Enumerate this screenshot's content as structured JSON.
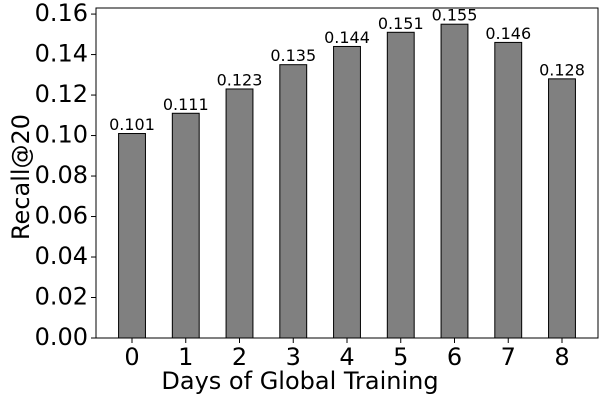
{
  "chart_data": {
    "type": "bar",
    "xlabel": "Days of Global Training",
    "ylabel": "Recall@20",
    "categories": [
      "0",
      "1",
      "2",
      "3",
      "4",
      "5",
      "6",
      "7",
      "8"
    ],
    "values": [
      0.101,
      0.111,
      0.123,
      0.135,
      0.144,
      0.151,
      0.155,
      0.146,
      0.128
    ],
    "color": "#808080",
    "edgecolor": "#000000",
    "ylim": [
      0,
      0.163
    ],
    "yticks": [
      {
        "value": 0,
        "label": "0.00"
      },
      {
        "value": 0.02,
        "label": "0.02"
      },
      {
        "value": 0.04,
        "label": "0.04"
      },
      {
        "value": 0.06,
        "label": "0.06"
      },
      {
        "value": 0.08,
        "label": "0.08"
      },
      {
        "value": 0.1,
        "label": "0.10"
      },
      {
        "value": 0.12,
        "label": "0.12"
      },
      {
        "value": 0.14,
        "label": "0.14"
      },
      {
        "value": 0.16,
        "label": "0.16"
      }
    ]
  }
}
